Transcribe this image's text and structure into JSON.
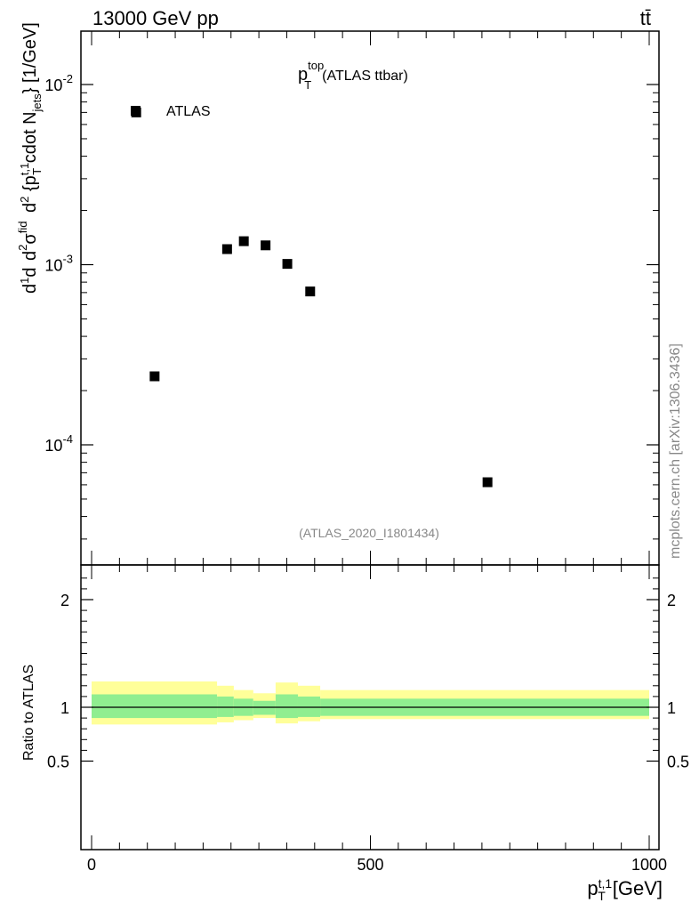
{
  "header": {
    "left": "13000 GeV pp",
    "right": "tt̄"
  },
  "plot_title": {
    "main": "p",
    "sup": "top",
    "sub": "T",
    "rest": "(ATLAS ttbar)"
  },
  "analysis_tag": "(ATLAS_2020_I1801434)",
  "side_label": "mcplots.cern.ch [arXiv:1306.3436]",
  "legend": {
    "label": "ATLAS"
  },
  "y_axis_label": "d1/σd d²σ^fid / d² {p_T^{t,1} cdot N_jets} [1/GeV]",
  "ratio_axis_label": "Ratio to ATLAS",
  "x_axis_label": "p_T^{t,1} [GeV]",
  "colors": {
    "band_inner": "#90ee90",
    "band_outer": "#ffff99",
    "marker": "#000000",
    "annotation": "#888888"
  },
  "chart_data": [
    {
      "type": "scatter",
      "title": "p_T^top (ATLAS ttbar)",
      "xlabel": "p_T^{t,1} [GeV]",
      "ylabel": "d1/σd d²σ^fid / d² {p_T^{t,1} cdot N_jets} [1/GeV]",
      "xlim": [
        -20,
        1020
      ],
      "ylim": [
        2.5e-05,
        0.02
      ],
      "yscale": "log",
      "x_ticks": [
        "0",
        "500",
        "1000"
      ],
      "y_ticks": [
        "10^-2",
        "10^-3",
        "10^-4"
      ],
      "series": [
        {
          "name": "ATLAS",
          "x": [
            80,
            113,
            243,
            273,
            312,
            351,
            392,
            710
          ],
          "y": [
            0.007,
            0.00024,
            0.00122,
            0.00135,
            0.00128,
            0.00101,
            0.00071,
            6.2e-05
          ]
        }
      ]
    },
    {
      "type": "area",
      "title": "",
      "xlabel": "p_T^{t,1} [GeV]",
      "ylabel": "Ratio to ATLAS",
      "xlim": [
        -20,
        1020
      ],
      "ylim": [
        0.4,
        2.3
      ],
      "y_ticks": [
        "0.5",
        "1",
        "2"
      ],
      "reference_line": 1,
      "bands": {
        "edges": [
          0,
          225,
          255,
          290,
          330,
          370,
          410,
          1000
        ],
        "inner_upper": [
          1.12,
          1.1,
          1.08,
          1.06,
          1.12,
          1.1,
          1.08
        ],
        "inner_lower": [
          0.9,
          0.91,
          0.92,
          0.93,
          0.9,
          0.91,
          0.92
        ],
        "outer_upper": [
          1.24,
          1.2,
          1.16,
          1.13,
          1.23,
          1.2,
          1.16
        ],
        "outer_lower": [
          0.84,
          0.86,
          0.88,
          0.9,
          0.85,
          0.87,
          0.89
        ]
      }
    }
  ]
}
